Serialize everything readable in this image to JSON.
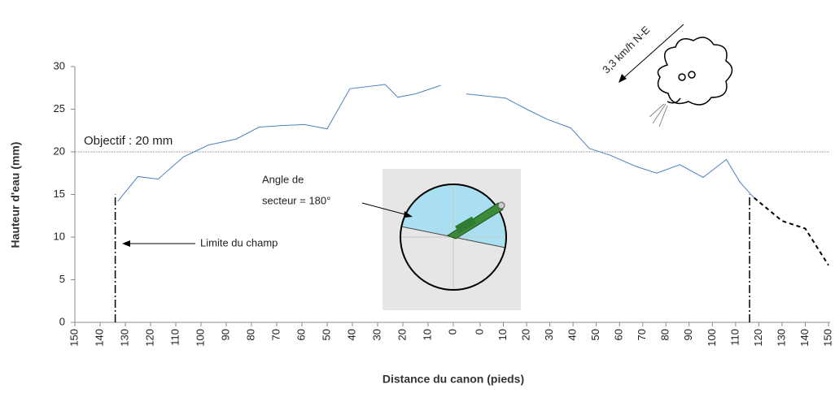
{
  "chart_data": [
    {
      "type": "line",
      "ylabel": "Hauteur d'eau (mm)",
      "xlabel": "Distance du canon (pieds)",
      "ylim": [
        0,
        30
      ],
      "yticks": [
        0,
        5,
        10,
        15,
        20,
        25,
        30
      ],
      "xlim": [
        150,
        0
      ],
      "xticks": [
        150,
        140,
        130,
        120,
        110,
        100,
        90,
        80,
        70,
        60,
        50,
        40,
        30,
        20,
        10,
        0
      ],
      "reference": {
        "value": 20,
        "label": "Objectif : 20 mm",
        "color": "#888888"
      },
      "field_limit": {
        "x": 134,
        "value": 15,
        "label": "Limite du champ"
      },
      "sector_label": [
        "Angle de",
        "secteur = 180°"
      ],
      "wind_label": "3,3 km/h N-E",
      "series": [
        {
          "color": "#4f81bd",
          "dash": false,
          "x": [
            133,
            125,
            117,
            107,
            97,
            86,
            77,
            67,
            59,
            50,
            41,
            27,
            22,
            15,
            5
          ],
          "values": [
            14.2,
            17.1,
            16.8,
            19.4,
            20.8,
            21.5,
            22.9,
            23.1,
            23.2,
            22.7,
            27.4,
            27.9,
            26.4,
            26.8,
            27.8
          ]
        }
      ]
    },
    {
      "type": "line",
      "ylim": [
        0,
        30
      ],
      "xlim": [
        0,
        150
      ],
      "xticks": [
        0,
        10,
        20,
        30,
        40,
        50,
        60,
        70,
        80,
        90,
        100,
        110,
        120,
        130,
        140,
        150
      ],
      "field_limit": {
        "x": 116,
        "value": 15
      },
      "series": [
        {
          "color": "#4f81bd",
          "dash": false,
          "x": [
            -6,
            11,
            20,
            29,
            39,
            47,
            56,
            67,
            76,
            86,
            96,
            106,
            112,
            118
          ],
          "values": [
            26.8,
            26.3,
            25.0,
            23.8,
            22.8,
            20.4,
            19.6,
            18.3,
            17.5,
            18.5,
            17.0,
            19.1,
            16.4,
            14.6
          ]
        },
        {
          "color": "#000000",
          "dash": true,
          "x": [
            118,
            130,
            140,
            150
          ],
          "values": [
            14.6,
            11.9,
            11.0,
            6.7
          ]
        }
      ]
    }
  ]
}
